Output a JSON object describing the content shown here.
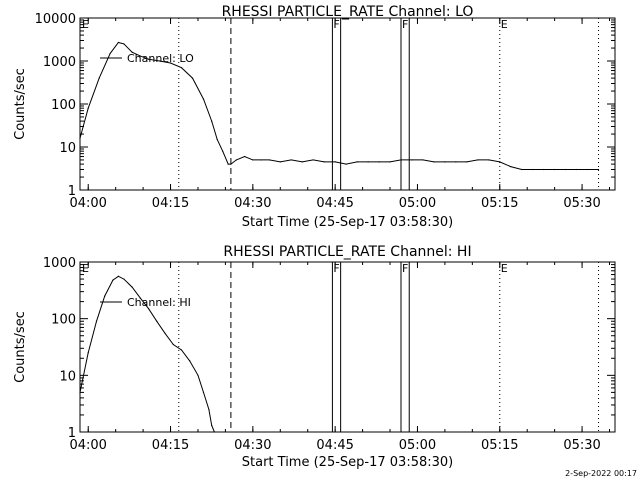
{
  "footer": {
    "date": "2-Sep-2022 00:17"
  },
  "chart_data": [
    {
      "type": "line",
      "title": "RHESSI PARTICLE_RATE Channel: LO",
      "xlabel": "Start Time (25-Sep-17 03:58:30)",
      "ylabel": "Counts/sec",
      "log_y": true,
      "xlim": [
        "03:58:30",
        "05:36:00"
      ],
      "ylim": [
        1,
        10000
      ],
      "x_ticks": [
        "04:00",
        "04:15",
        "04:30",
        "04:45",
        "05:00",
        "05:15",
        "05:30"
      ],
      "y_ticks": [
        "1",
        "10",
        "100",
        "1000",
        "10000"
      ],
      "legend": {
        "label": "Channel: LO",
        "position": "top-left"
      },
      "series": [
        {
          "name": "Channel: LO",
          "x": [
            "03:58:30",
            "04:00:00",
            "04:02:00",
            "04:04:00",
            "04:05:30",
            "04:06:30",
            "04:08:00",
            "04:09:30",
            "04:11:00",
            "04:13:00",
            "04:15:00",
            "04:17:00",
            "04:19:00",
            "04:21:00",
            "04:22:30",
            "04:23:30",
            "04:24:30",
            "04:25:30",
            "04:26:00",
            "04:27:00",
            "04:28:30",
            "04:30:00",
            "04:31:30",
            "04:33:00",
            "04:35:00",
            "04:37:00",
            "04:39:00",
            "04:41:00",
            "04:43:00",
            "04:45:00",
            "04:47:00",
            "04:49:00",
            "04:51:00",
            "04:53:00",
            "04:55:00",
            "04:57:00",
            "04:59:00",
            "05:01:00",
            "05:03:00",
            "05:05:00",
            "05:07:00",
            "05:09:00",
            "05:11:00",
            "05:13:00",
            "05:15:00",
            "05:17:00",
            "05:19:00",
            "05:21:00",
            "05:23:00",
            "05:25:00",
            "05:27:00",
            "05:29:00",
            "05:31:00",
            "05:33:00"
          ],
          "y": [
            16,
            80,
            400,
            1500,
            2700,
            2500,
            1600,
            1300,
            1100,
            1000,
            900,
            700,
            400,
            130,
            40,
            15,
            8,
            4,
            4,
            5,
            6,
            5,
            5,
            5,
            4.5,
            5,
            4.5,
            5,
            4.5,
            4.5,
            4,
            4.5,
            4.5,
            4.5,
            4.5,
            5,
            5,
            5,
            4.5,
            4.5,
            4.5,
            4.5,
            5,
            5,
            4.5,
            3.5,
            3,
            3,
            3,
            3,
            3,
            3,
            3,
            3
          ]
        }
      ],
      "vertical_markers": [
        {
          "time": "04:16:30",
          "style": "dotted"
        },
        {
          "time": "04:26:00",
          "style": "dashed"
        },
        {
          "time": "04:44:30",
          "style": "solid",
          "label": "F"
        },
        {
          "time": "04:46:00",
          "style": "solid"
        },
        {
          "time": "04:57:00",
          "style": "solid",
          "label": "F"
        },
        {
          "time": "04:58:30",
          "style": "solid"
        },
        {
          "time": "05:15:00",
          "style": "dotted",
          "label": "E"
        },
        {
          "time": "05:33:00",
          "style": "dotted"
        }
      ],
      "edge_label": "E"
    },
    {
      "type": "line",
      "title": "RHESSI PARTICLE_RATE Channel: HI",
      "xlabel": "Start Time (25-Sep-17 03:58:30)",
      "ylabel": "Counts/sec",
      "log_y": true,
      "xlim": [
        "03:58:30",
        "05:36:00"
      ],
      "ylim": [
        1,
        1000
      ],
      "x_ticks": [
        "04:00",
        "04:15",
        "04:30",
        "04:45",
        "05:00",
        "05:15",
        "05:30"
      ],
      "y_ticks": [
        "1",
        "10",
        "100",
        "1000"
      ],
      "legend": {
        "label": "Channel: HI",
        "position": "top-left"
      },
      "series": [
        {
          "name": "Channel: HI",
          "x": [
            "03:58:30",
            "04:00:00",
            "04:01:30",
            "04:03:00",
            "04:04:30",
            "04:05:30",
            "04:06:30",
            "04:08:00",
            "04:09:30",
            "04:11:00",
            "04:12:30",
            "04:14:00",
            "04:15:30",
            "04:17:00",
            "04:18:30",
            "04:20:00",
            "04:21:00",
            "04:22:00",
            "04:22:30",
            "04:23:00"
          ],
          "y": [
            5,
            25,
            90,
            250,
            480,
            560,
            500,
            360,
            230,
            150,
            90,
            55,
            35,
            28,
            18,
            10,
            5,
            2.5,
            1.3,
            1
          ]
        }
      ],
      "vertical_markers": [
        {
          "time": "04:16:30",
          "style": "dotted"
        },
        {
          "time": "04:26:00",
          "style": "dashed"
        },
        {
          "time": "04:44:30",
          "style": "solid",
          "label": "F"
        },
        {
          "time": "04:46:00",
          "style": "solid"
        },
        {
          "time": "04:57:00",
          "style": "solid",
          "label": "F"
        },
        {
          "time": "04:58:30",
          "style": "solid"
        },
        {
          "time": "05:15:00",
          "style": "dotted",
          "label": "E"
        },
        {
          "time": "05:33:00",
          "style": "dotted"
        }
      ],
      "edge_label": "E"
    }
  ]
}
